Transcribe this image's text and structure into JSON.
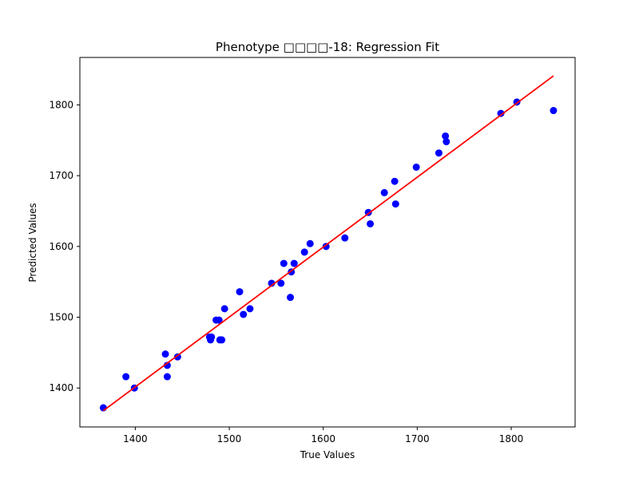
{
  "chart_data": {
    "type": "scatter",
    "title": "Phenotype □□□□-18: Regression Fit",
    "xlabel": "True Values",
    "ylabel": "Predicted Values",
    "xlim": [
      1341,
      1868
    ],
    "ylim": [
      1345,
      1867
    ],
    "xticks": [
      1400,
      1500,
      1600,
      1700,
      1800
    ],
    "yticks": [
      1400,
      1500,
      1600,
      1700,
      1800
    ],
    "grid": false,
    "colors": {
      "points": "#0000ff",
      "fit_line": "#ff0000"
    },
    "points": [
      {
        "x": 1366,
        "y": 1372
      },
      {
        "x": 1390,
        "y": 1416
      },
      {
        "x": 1399,
        "y": 1400
      },
      {
        "x": 1432,
        "y": 1448
      },
      {
        "x": 1434,
        "y": 1416
      },
      {
        "x": 1434,
        "y": 1432
      },
      {
        "x": 1445,
        "y": 1444
      },
      {
        "x": 1479,
        "y": 1472
      },
      {
        "x": 1480,
        "y": 1468
      },
      {
        "x": 1481,
        "y": 1472
      },
      {
        "x": 1486,
        "y": 1496
      },
      {
        "x": 1489,
        "y": 1496
      },
      {
        "x": 1490,
        "y": 1468
      },
      {
        "x": 1492,
        "y": 1468
      },
      {
        "x": 1495,
        "y": 1512
      },
      {
        "x": 1511,
        "y": 1536
      },
      {
        "x": 1515,
        "y": 1504
      },
      {
        "x": 1522,
        "y": 1512
      },
      {
        "x": 1545,
        "y": 1548
      },
      {
        "x": 1555,
        "y": 1548
      },
      {
        "x": 1558,
        "y": 1576
      },
      {
        "x": 1565,
        "y": 1528
      },
      {
        "x": 1566,
        "y": 1564
      },
      {
        "x": 1569,
        "y": 1576
      },
      {
        "x": 1580,
        "y": 1592
      },
      {
        "x": 1586,
        "y": 1604
      },
      {
        "x": 1603,
        "y": 1600
      },
      {
        "x": 1623,
        "y": 1612
      },
      {
        "x": 1648,
        "y": 1648
      },
      {
        "x": 1650,
        "y": 1632
      },
      {
        "x": 1665,
        "y": 1676
      },
      {
        "x": 1676,
        "y": 1692
      },
      {
        "x": 1677,
        "y": 1660
      },
      {
        "x": 1699,
        "y": 1712
      },
      {
        "x": 1723,
        "y": 1732
      },
      {
        "x": 1730,
        "y": 1756
      },
      {
        "x": 1731,
        "y": 1748
      },
      {
        "x": 1789,
        "y": 1788
      },
      {
        "x": 1806,
        "y": 1804
      },
      {
        "x": 1845,
        "y": 1792
      }
    ],
    "fit_line": {
      "x": [
        1366,
        1845
      ],
      "y": [
        1368,
        1841
      ]
    }
  }
}
